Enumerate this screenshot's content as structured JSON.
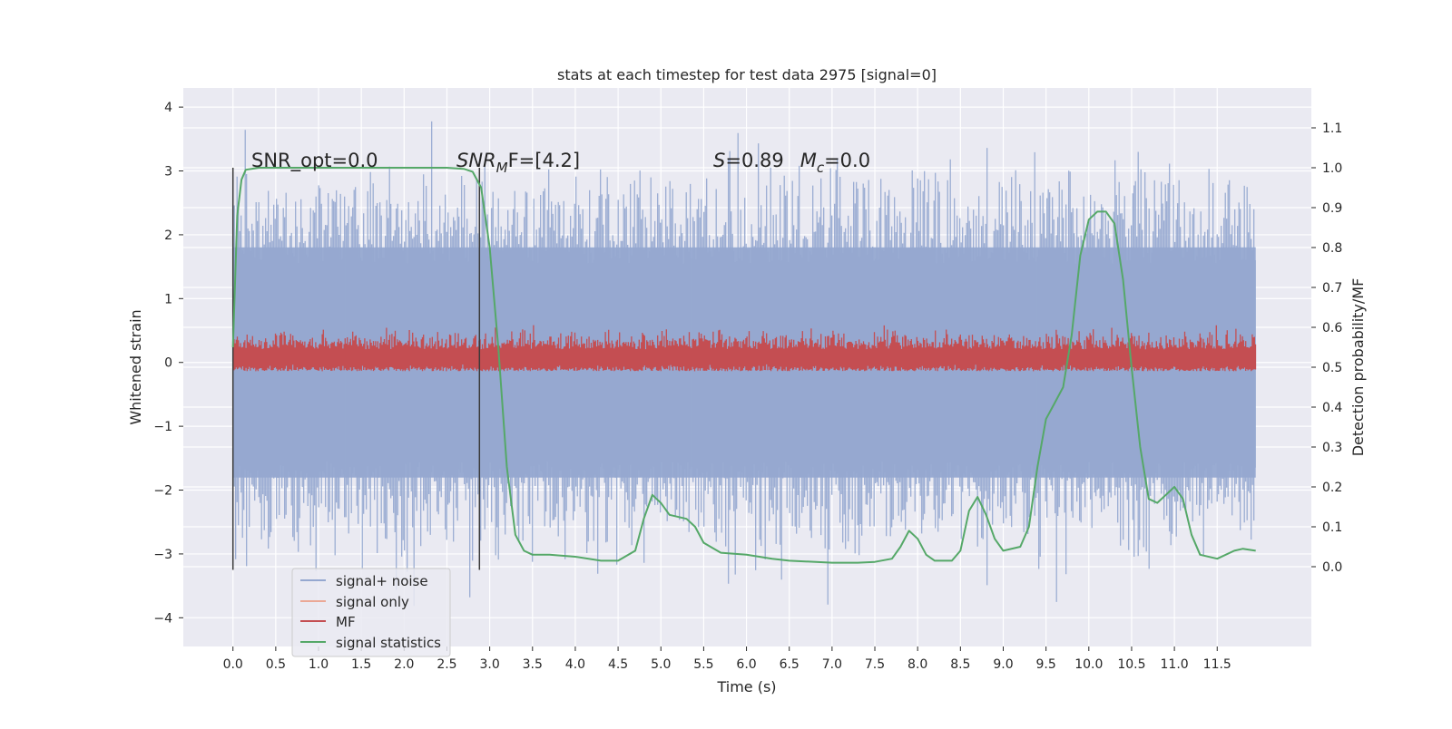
{
  "chart_data": {
    "type": "line",
    "title": "stats at each timestep for test data 2975 [signal=0]",
    "xlabel": "Time (s)",
    "ylabel_left": "Whitened strain",
    "ylabel_right": "Detection probability/MF",
    "xlim": [
      -0.58,
      12.6
    ],
    "ylim_left": [
      -4.45,
      4.3
    ],
    "ylim_right": [
      -0.2,
      1.2
    ],
    "x_ticks": [
      "0.0",
      "0.5",
      "1.0",
      "1.5",
      "2.0",
      "2.5",
      "3.0",
      "3.5",
      "4.0",
      "4.5",
      "5.0",
      "5.5",
      "6.0",
      "6.5",
      "7.0",
      "7.5",
      "8.0",
      "8.5",
      "9.0",
      "9.5",
      "10.0",
      "10.5",
      "11.0",
      "11.5"
    ],
    "y_ticks_left": [
      "4",
      "3",
      "2",
      "1",
      "0",
      "−1",
      "−2",
      "−3",
      "−4"
    ],
    "y_ticks_right": [
      "1.1",
      "1.0",
      "0.9",
      "0.8",
      "0.7",
      "0.6",
      "0.5",
      "0.4",
      "0.3",
      "0.2",
      "0.1",
      "0.0"
    ],
    "grid": true,
    "legend_position": "lower-left",
    "annotations": {
      "snr_opt": "SNR_opt=0.0",
      "snr_mf_main": "SNR",
      "snr_mf_sub": "M",
      "snr_mf_rest": "F=[4.2]",
      "s_var": "S",
      "s_val": "=0.89",
      "mc_var": "M",
      "mc_sub": "c",
      "mc_val": "=0.0"
    },
    "vertical_markers": [
      0.0,
      2.88
    ],
    "series": [
      {
        "name": "signal+ noise",
        "axis": "left",
        "color": "#95a8d0",
        "description_range": [
          -3.7,
          3.9
        ],
        "x_range": [
          0.0,
          11.95
        ],
        "typical_amplitude": 2.2,
        "peak_amplitude": 3.9
      },
      {
        "name": "signal only",
        "axis": "left",
        "color": "#eba896",
        "values": []
      },
      {
        "name": "MF",
        "axis": "right",
        "color": "#c44e52",
        "x_range": [
          0.0,
          11.95
        ],
        "baseline": 0.5,
        "typical_max": 0.6,
        "peak_max": 0.65
      },
      {
        "name": "signal statistics",
        "axis": "right",
        "color": "#55a868",
        "x": [
          0.0,
          0.05,
          0.1,
          0.15,
          0.3,
          0.5,
          1.0,
          2.0,
          2.5,
          2.7,
          2.8,
          2.9,
          3.0,
          3.1,
          3.2,
          3.3,
          3.4,
          3.5,
          3.7,
          4.0,
          4.3,
          4.5,
          4.7,
          4.8,
          4.9,
          5.0,
          5.1,
          5.3,
          5.4,
          5.5,
          5.7,
          6.0,
          6.3,
          6.5,
          7.0,
          7.3,
          7.5,
          7.7,
          7.8,
          7.9,
          8.0,
          8.1,
          8.2,
          8.4,
          8.5,
          8.6,
          8.7,
          8.8,
          8.9,
          9.0,
          9.2,
          9.3,
          9.4,
          9.5,
          9.6,
          9.7,
          9.8,
          9.9,
          10.0,
          10.1,
          10.2,
          10.3,
          10.4,
          10.5,
          10.6,
          10.7,
          10.8,
          10.9,
          11.0,
          11.1,
          11.2,
          11.3,
          11.5,
          11.7,
          11.8,
          11.95
        ],
        "y": [
          0.55,
          0.88,
          0.97,
          0.995,
          1.0,
          1.0,
          1.0,
          1.0,
          1.0,
          0.997,
          0.99,
          0.95,
          0.8,
          0.55,
          0.25,
          0.08,
          0.04,
          0.03,
          0.03,
          0.025,
          0.015,
          0.015,
          0.04,
          0.12,
          0.18,
          0.16,
          0.13,
          0.12,
          0.1,
          0.06,
          0.035,
          0.03,
          0.02,
          0.015,
          0.01,
          0.01,
          0.012,
          0.02,
          0.05,
          0.09,
          0.07,
          0.03,
          0.015,
          0.015,
          0.04,
          0.14,
          0.175,
          0.13,
          0.07,
          0.04,
          0.05,
          0.1,
          0.25,
          0.37,
          0.41,
          0.45,
          0.58,
          0.78,
          0.87,
          0.89,
          0.89,
          0.86,
          0.72,
          0.5,
          0.3,
          0.17,
          0.16,
          0.18,
          0.2,
          0.17,
          0.08,
          0.03,
          0.02,
          0.04,
          0.045,
          0.04
        ]
      }
    ]
  }
}
